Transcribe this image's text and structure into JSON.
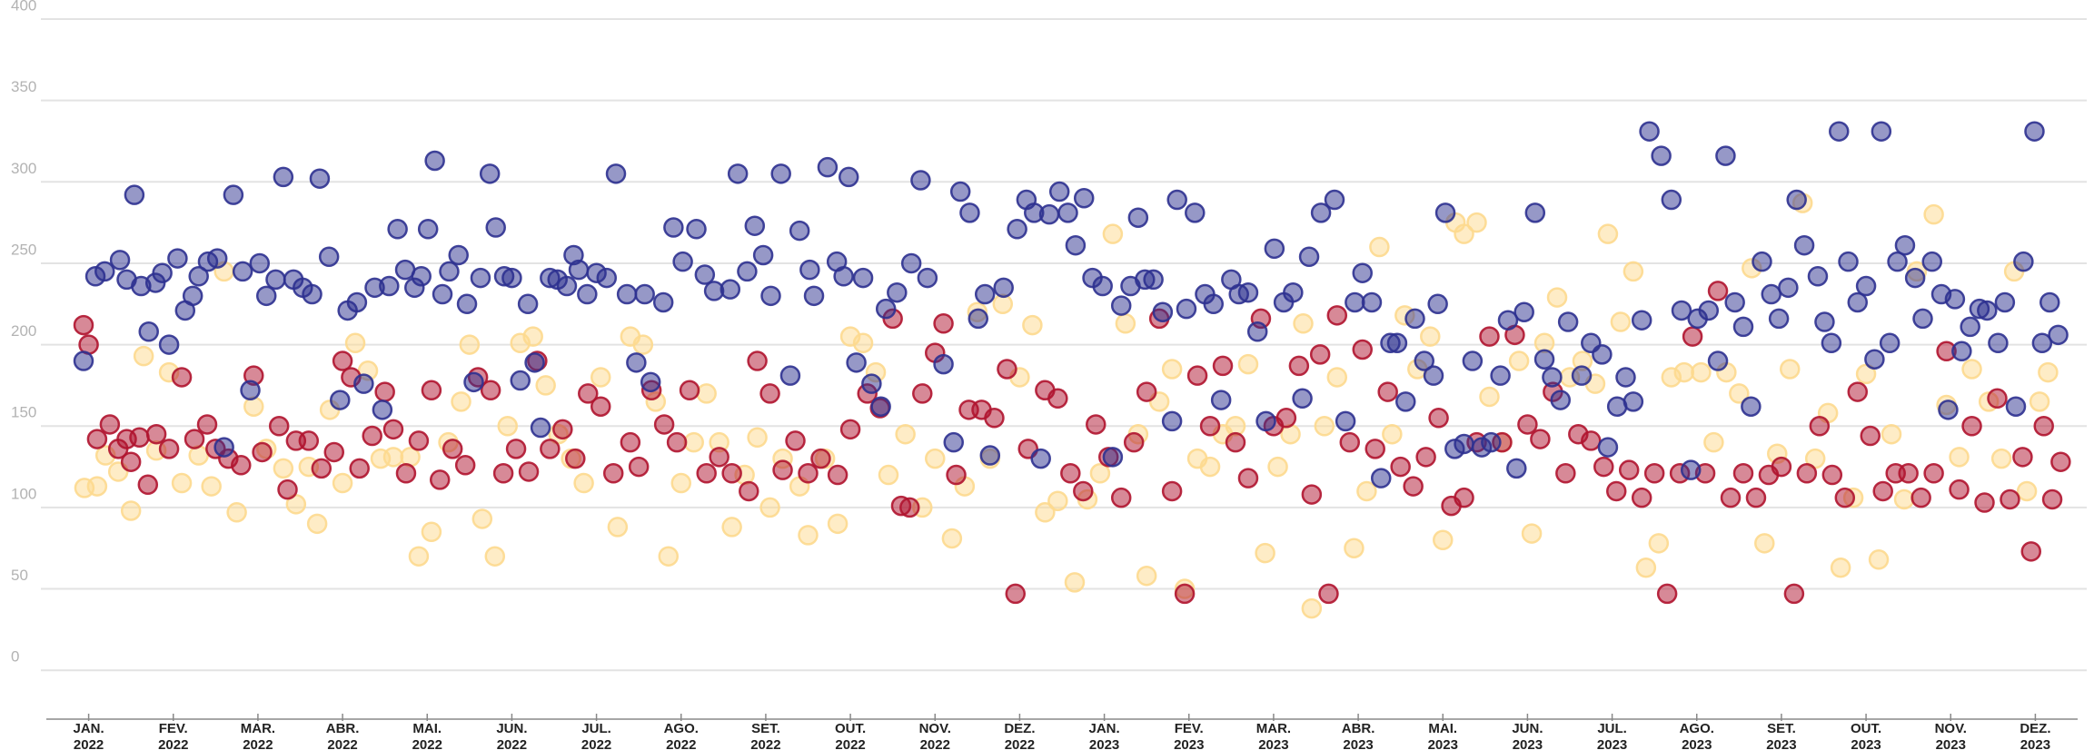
{
  "chart_data": {
    "type": "scatter",
    "xlim": [
      0,
      24
    ],
    "ylim": [
      -30,
      400
    ],
    "yticks": [
      0,
      50,
      100,
      150,
      200,
      250,
      300,
      350,
      400
    ],
    "xticks": [
      {
        "value": 0.5,
        "label": "JAN. 2022"
      },
      {
        "value": 1.5,
        "label": "FEV. 2022"
      },
      {
        "value": 2.5,
        "label": "MAR. 2022"
      },
      {
        "value": 3.5,
        "label": "ABR. 2022"
      },
      {
        "value": 4.5,
        "label": "MAI. 2022"
      },
      {
        "value": 5.5,
        "label": "JUN. 2022"
      },
      {
        "value": 6.5,
        "label": "JUL. 2022"
      },
      {
        "value": 7.5,
        "label": "AGO. 2022"
      },
      {
        "value": 8.5,
        "label": "SET. 2022"
      },
      {
        "value": 9.5,
        "label": "OUT. 2022"
      },
      {
        "value": 10.5,
        "label": "NOV. 2022"
      },
      {
        "value": 11.5,
        "label": "DEZ. 2022"
      },
      {
        "value": 12.5,
        "label": "JAN. 2023"
      },
      {
        "value": 13.5,
        "label": "FEV. 2023"
      },
      {
        "value": 14.5,
        "label": "MAR. 2023"
      },
      {
        "value": 15.5,
        "label": "ABR. 2023"
      },
      {
        "value": 16.5,
        "label": "MAI. 2023"
      },
      {
        "value": 17.5,
        "label": "JUN. 2023"
      },
      {
        "value": 18.5,
        "label": "JUL. 2023"
      },
      {
        "value": 19.5,
        "label": "AGO. 2023"
      },
      {
        "value": 20.5,
        "label": "SET. 2023"
      },
      {
        "value": 21.5,
        "label": "OUT. 2023"
      },
      {
        "value": 22.5,
        "label": "NOV. 2023"
      },
      {
        "value": 23.5,
        "label": "DEZ. 2023"
      }
    ],
    "grid": true,
    "series": [
      {
        "color": "#2d3190",
        "x": [
          0.44,
          0.58,
          0.69,
          0.87,
          0.95,
          1.04,
          1.12,
          1.21,
          1.29,
          1.37,
          1.45,
          1.55,
          1.64,
          1.73,
          1.8,
          1.91,
          2.02,
          2.1,
          2.21,
          2.32,
          2.41,
          2.52,
          2.6,
          2.71,
          2.8,
          2.92,
          3.03,
          3.14,
          3.23,
          3.34,
          3.47,
          3.56,
          3.67,
          3.75,
          3.88,
          3.97,
          4.05,
          4.15,
          4.24,
          4.35,
          4.43,
          4.51,
          4.59,
          4.68,
          4.76,
          4.87,
          4.97,
          5.05,
          5.13,
          5.24,
          5.31,
          5.41,
          5.5,
          5.6,
          5.69,
          5.77,
          5.84,
          5.95,
          6.04,
          6.15,
          6.23,
          6.29,
          6.39,
          6.5,
          6.62,
          6.73,
          6.86,
          6.97,
          7.07,
          7.14,
          7.29,
          7.41,
          7.52,
          7.68,
          7.78,
          7.89,
          8.08,
          8.17,
          8.28,
          8.37,
          8.47,
          8.56,
          8.68,
          8.79,
          8.9,
          9.02,
          9.07,
          9.23,
          9.34,
          9.42,
          9.48,
          9.57,
          9.65,
          9.75,
          9.86,
          9.92,
          10.05,
          10.22,
          10.33,
          10.41,
          10.6,
          10.72,
          10.8,
          10.91,
          11.01,
          11.09,
          11.15,
          11.31,
          11.47,
          11.58,
          11.67,
          11.75,
          11.85,
          11.97,
          12.07,
          12.16,
          12.26,
          12.36,
          12.48,
          12.6,
          12.7,
          12.81,
          12.9,
          12.98,
          13.08,
          13.19,
          13.3,
          13.36,
          13.47,
          13.57,
          13.69,
          13.79,
          13.88,
          14.0,
          14.09,
          14.2,
          14.31,
          14.41,
          14.51,
          14.62,
          14.73,
          14.84,
          14.92,
          15.06,
          15.22,
          15.35,
          15.46,
          15.55,
          15.66,
          15.77,
          15.88,
          15.96,
          16.06,
          16.17,
          16.28,
          16.39,
          16.44,
          16.53,
          16.64,
          16.75,
          16.85,
          16.96,
          17.07,
          17.18,
          17.27,
          17.37,
          17.46,
          17.59,
          17.7,
          17.79,
          17.89,
          17.98,
          18.14,
          18.25,
          18.38,
          18.45,
          18.56,
          18.66,
          18.75,
          18.85,
          18.94,
          19.08,
          19.2,
          19.32,
          19.43,
          19.51,
          19.64,
          19.75,
          19.84,
          19.95,
          20.05,
          20.14,
          20.27,
          20.38,
          20.47,
          20.58,
          20.68,
          20.77,
          20.93,
          21.01,
          21.09,
          21.18,
          21.29,
          21.4,
          21.5,
          21.6,
          21.68,
          21.78,
          21.87,
          21.96,
          22.08,
          22.17,
          22.28,
          22.39,
          22.47,
          22.55,
          22.63,
          22.73,
          22.84,
          22.93,
          23.06,
          23.14,
          23.27,
          23.36,
          23.49,
          23.58,
          23.67,
          23.77
        ],
        "values": [
          190,
          242,
          245,
          252,
          240,
          292,
          236,
          208,
          238,
          244,
          200,
          253,
          221,
          230,
          242,
          251,
          253,
          137,
          292,
          245,
          172,
          250,
          230,
          240,
          303,
          240,
          235,
          231,
          302,
          254,
          166,
          221,
          226,
          176,
          235,
          160,
          236,
          271,
          246,
          235,
          242,
          271,
          313,
          231,
          245,
          255,
          225,
          177,
          241,
          305,
          272,
          242,
          241,
          178,
          225,
          189,
          149,
          241,
          240,
          236,
          255,
          246,
          231,
          244,
          241,
          305,
          231,
          189,
          231,
          177,
          226,
          272,
          251,
          271,
          243,
          233,
          234,
          305,
          245,
          273,
          255,
          230,
          305,
          181,
          270,
          246,
          230,
          309,
          251,
          242,
          303,
          189,
          241,
          176,
          162,
          222,
          232,
          250,
          301,
          241,
          188,
          140,
          294,
          281,
          216,
          231,
          132,
          235,
          271,
          289,
          281,
          130,
          280,
          294,
          281,
          261,
          290,
          241,
          236,
          131,
          224,
          236,
          278,
          240,
          240,
          220,
          153,
          289,
          222,
          281,
          231,
          225,
          166,
          240,
          231,
          232,
          208,
          153,
          259,
          226,
          232,
          167,
          254,
          281,
          289,
          153,
          226,
          244,
          226,
          118,
          201,
          201,
          165,
          216,
          190,
          181,
          225,
          281,
          136,
          139,
          190,
          137,
          140,
          181,
          215,
          124,
          220,
          281,
          191,
          180,
          166,
          214,
          181,
          201,
          194,
          137,
          162,
          180,
          165,
          215,
          331,
          316,
          289,
          221,
          123,
          216,
          221,
          190,
          316,
          226,
          211,
          162,
          251,
          231,
          216,
          235,
          289,
          261,
          242,
          214,
          201,
          331,
          251,
          226,
          236,
          191,
          331,
          201,
          251,
          261,
          241,
          216,
          251,
          231,
          160,
          228,
          196,
          211,
          222,
          221,
          201,
          226,
          162,
          251,
          331,
          201,
          226,
          206
        ]
      },
      {
        "color": "#b0142f",
        "x": [
          0.44,
          0.5,
          0.6,
          0.75,
          0.85,
          0.95,
          1.0,
          1.1,
          1.2,
          1.3,
          1.45,
          1.6,
          1.75,
          1.9,
          2.0,
          2.15,
          2.3,
          2.45,
          2.55,
          2.75,
          2.85,
          2.95,
          3.1,
          3.25,
          3.4,
          3.5,
          3.6,
          3.7,
          3.85,
          4.0,
          4.1,
          4.25,
          4.4,
          4.55,
          4.65,
          4.8,
          4.95,
          5.1,
          5.25,
          5.4,
          5.55,
          5.7,
          5.8,
          5.95,
          6.1,
          6.25,
          6.4,
          6.55,
          6.7,
          6.9,
          7.0,
          7.15,
          7.3,
          7.45,
          7.6,
          7.8,
          7.95,
          8.1,
          8.3,
          8.4,
          8.55,
          8.7,
          8.85,
          9.0,
          9.15,
          9.35,
          9.5,
          9.7,
          9.85,
          10.0,
          10.1,
          10.2,
          10.35,
          10.5,
          10.6,
          10.75,
          10.9,
          11.05,
          11.2,
          11.35,
          11.45,
          11.6,
          11.8,
          11.95,
          12.1,
          12.25,
          12.4,
          12.55,
          12.7,
          12.85,
          13.0,
          13.15,
          13.3,
          13.45,
          13.6,
          13.75,
          13.9,
          14.05,
          14.2,
          14.35,
          14.5,
          14.65,
          14.8,
          14.95,
          15.05,
          15.15,
          15.25,
          15.4,
          15.55,
          15.7,
          15.85,
          16.0,
          16.15,
          16.3,
          16.45,
          16.6,
          16.75,
          16.9,
          17.05,
          17.2,
          17.35,
          17.5,
          17.65,
          17.8,
          17.95,
          18.1,
          18.25,
          18.4,
          18.55,
          18.7,
          18.85,
          19.0,
          19.15,
          19.3,
          19.45,
          19.6,
          19.75,
          19.9,
          20.05,
          20.2,
          20.35,
          20.5,
          20.65,
          20.8,
          20.95,
          21.1,
          21.25,
          21.4,
          21.55,
          21.7,
          21.85,
          22.0,
          22.15,
          22.3,
          22.45,
          22.6,
          22.75,
          22.9,
          23.05,
          23.2,
          23.35,
          23.45,
          23.6,
          23.7,
          23.8
        ],
        "values": [
          212,
          200,
          142,
          151,
          136,
          142,
          128,
          143,
          114,
          145,
          136,
          180,
          142,
          151,
          136,
          130,
          126,
          181,
          134,
          150,
          111,
          141,
          141,
          124,
          134,
          190,
          180,
          124,
          144,
          171,
          148,
          121,
          141,
          172,
          117,
          136,
          126,
          180,
          172,
          121,
          136,
          122,
          190,
          136,
          148,
          130,
          170,
          162,
          121,
          140,
          125,
          172,
          151,
          140,
          172,
          121,
          131,
          121,
          110,
          190,
          170,
          123,
          141,
          121,
          130,
          120,
          148,
          170,
          161,
          216,
          101,
          100,
          170,
          195,
          213,
          120,
          160,
          160,
          155,
          185,
          47,
          136,
          172,
          167,
          121,
          110,
          151,
          131,
          106,
          140,
          171,
          216,
          110,
          47,
          181,
          150,
          187,
          140,
          118,
          216,
          150,
          155,
          187,
          108,
          194,
          47,
          218,
          140,
          197,
          136,
          171,
          125,
          113,
          131,
          155,
          101,
          106,
          140,
          205,
          140,
          206,
          151,
          142,
          171,
          121,
          145,
          141,
          125,
          110,
          123,
          106,
          121,
          47,
          121,
          205,
          121,
          233,
          106,
          121,
          106,
          120,
          125,
          47,
          121,
          150,
          120,
          106,
          171,
          144,
          110,
          121,
          121,
          106,
          121,
          196,
          111,
          150,
          103,
          167,
          105,
          131,
          73,
          150,
          105,
          128
        ]
      },
      {
        "color": "#fdd98e",
        "x": [
          0.45,
          0.6,
          0.7,
          0.85,
          1.0,
          1.15,
          1.3,
          1.45,
          1.6,
          1.8,
          1.95,
          2.1,
          2.25,
          2.45,
          2.6,
          2.8,
          2.95,
          3.1,
          3.2,
          3.35,
          3.5,
          3.65,
          3.8,
          3.95,
          4.1,
          4.3,
          4.4,
          4.55,
          4.75,
          4.9,
          5.0,
          5.15,
          5.3,
          5.45,
          5.6,
          5.75,
          5.9,
          6.05,
          6.2,
          6.35,
          6.55,
          6.75,
          6.9,
          7.05,
          7.2,
          7.35,
          7.5,
          7.65,
          7.8,
          7.95,
          8.1,
          8.25,
          8.4,
          8.55,
          8.7,
          8.9,
          9.0,
          9.2,
          9.35,
          9.5,
          9.65,
          9.8,
          9.95,
          10.15,
          10.35,
          10.5,
          10.7,
          10.85,
          11.0,
          11.15,
          11.3,
          11.5,
          11.65,
          11.8,
          11.95,
          12.15,
          12.3,
          12.45,
          12.6,
          12.75,
          12.9,
          13.0,
          13.15,
          13.3,
          13.45,
          13.6,
          13.75,
          13.9,
          14.05,
          14.2,
          14.4,
          14.55,
          14.7,
          14.85,
          14.95,
          15.1,
          15.25,
          15.45,
          15.6,
          15.75,
          15.9,
          16.05,
          16.2,
          16.35,
          16.5,
          16.65,
          16.75,
          16.9,
          17.05,
          17.2,
          17.4,
          17.55,
          17.7,
          17.85,
          18.0,
          18.15,
          18.3,
          18.45,
          18.6,
          18.75,
          18.9,
          19.05,
          19.2,
          19.35,
          19.55,
          19.7,
          19.85,
          20.0,
          20.15,
          20.3,
          20.45,
          20.6,
          20.75,
          20.9,
          21.05,
          21.2,
          21.35,
          21.5,
          21.65,
          21.8,
          21.95,
          22.1,
          22.3,
          22.45,
          22.6,
          22.75,
          22.95,
          23.1,
          23.25,
          23.4,
          23.55,
          23.65
        ],
        "values": [
          112,
          113,
          132,
          122,
          98,
          193,
          135,
          183,
          115,
          132,
          113,
          245,
          97,
          162,
          136,
          124,
          102,
          125,
          90,
          160,
          115,
          201,
          184,
          130,
          131,
          131,
          70,
          85,
          140,
          165,
          200,
          93,
          70,
          150,
          201,
          205,
          175,
          145,
          130,
          115,
          180,
          88,
          205,
          200,
          165,
          70,
          115,
          140,
          170,
          140,
          88,
          120,
          143,
          100,
          130,
          113,
          83,
          130,
          90,
          205,
          201,
          183,
          120,
          145,
          100,
          130,
          81,
          113,
          220,
          130,
          225,
          180,
          212,
          97,
          104,
          54,
          105,
          121,
          268,
          213,
          145,
          58,
          165,
          185,
          50,
          130,
          125,
          145,
          150,
          188,
          72,
          125,
          145,
          213,
          38,
          150,
          180,
          75,
          110,
          260,
          145,
          218,
          185,
          205,
          80,
          275,
          268,
          275,
          168,
          140,
          190,
          84,
          201,
          229,
          180,
          190,
          176,
          268,
          214,
          245,
          63,
          78,
          180,
          183,
          183,
          140,
          183,
          170,
          247,
          78,
          133,
          185,
          287,
          130,
          158,
          63,
          106,
          182,
          68,
          145,
          105,
          245,
          280,
          163,
          131,
          185,
          165,
          130,
          245,
          110,
          165,
          183
        ]
      }
    ]
  }
}
